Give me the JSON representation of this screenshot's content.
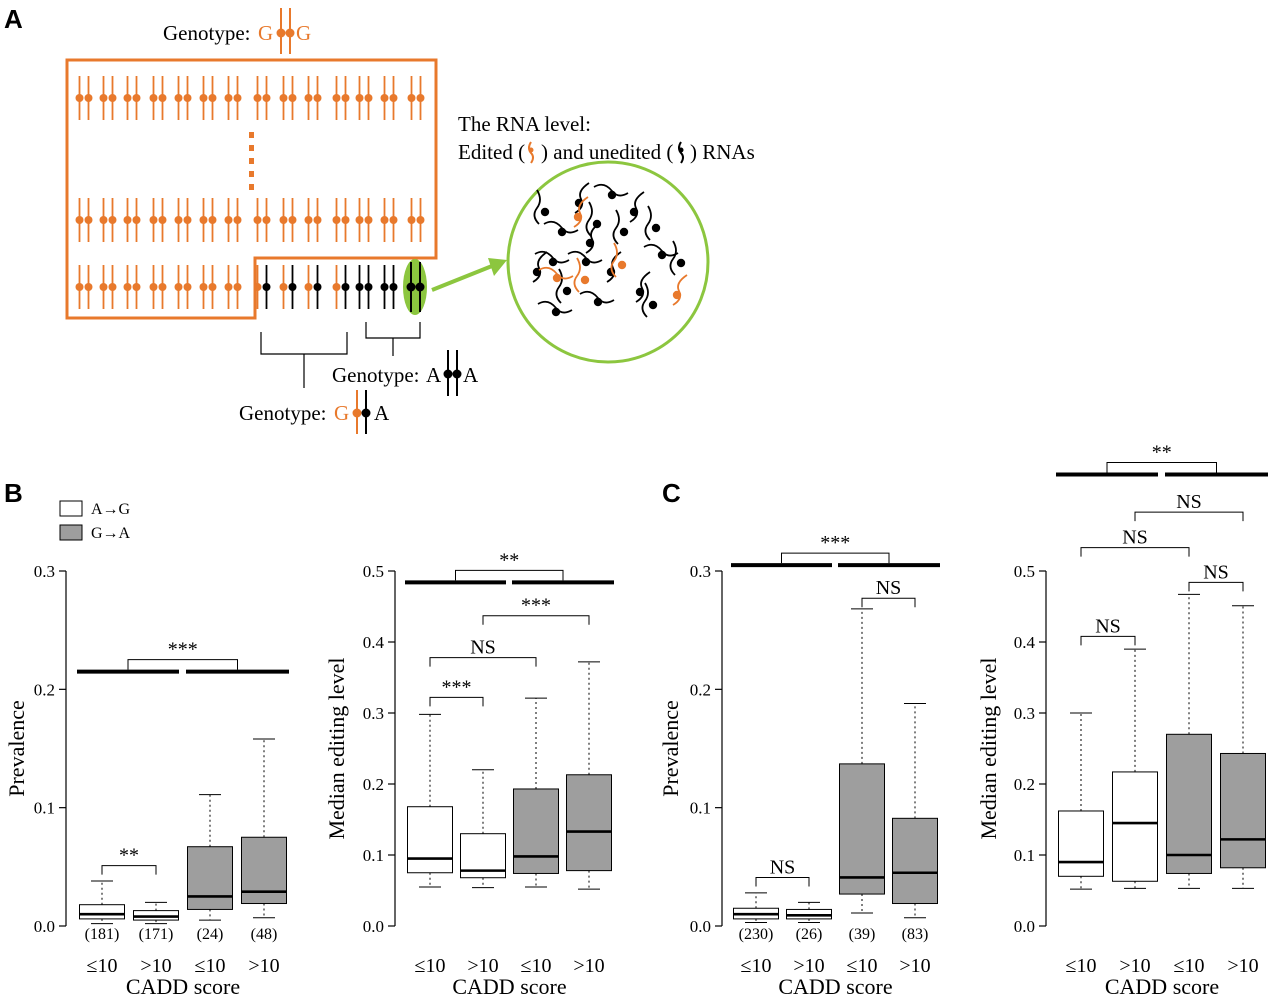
{
  "panels": {
    "a": {
      "letter": "A",
      "genotype_gg": {
        "label": "Genotype:",
        "allele_1": "G",
        "allele_2": "G"
      },
      "genotype_aa": {
        "label": "Genotype:",
        "allele_1": "A",
        "allele_2": "A"
      },
      "genotype_ga": {
        "label": "Genotype:",
        "allele_1": "G",
        "allele_2": "A"
      },
      "rna_title": "The RNA level:",
      "rna_legend": {
        "edited": "Edited (",
        "mid": ") and unedited (",
        "end": ") RNAs"
      }
    },
    "b": {
      "letter": "B"
    },
    "c": {
      "letter": "C"
    }
  },
  "legend": {
    "items": [
      {
        "label": "A→G",
        "color": "#ffffff"
      },
      {
        "label": "G→A",
        "color": "#9e9e9e"
      }
    ]
  },
  "colors": {
    "orange": "#e8792c",
    "green": "#8cc63f",
    "box_grey": "#9e9e9e",
    "black": "#000000"
  },
  "chart_data": [
    {
      "type": "box",
      "panel": "B",
      "ylabel": "Prevalence",
      "xlabel": "CADD score",
      "ylim": [
        0,
        0.3
      ],
      "yticks": [
        "0.0",
        "0.1",
        "0.2",
        "0.3"
      ],
      "categories": [
        "≤10",
        ">10",
        "≤10",
        ">10"
      ],
      "counts": [
        "(181)",
        "(171)",
        "(24)",
        "(48)"
      ],
      "boxes": [
        {
          "q1": 0.006,
          "median": 0.01,
          "q3": 0.018,
          "whisker_low": 0.002,
          "whisker_high": 0.038,
          "fill": "#ffffff"
        },
        {
          "q1": 0.005,
          "median": 0.008,
          "q3": 0.013,
          "whisker_low": 0.002,
          "whisker_high": 0.02,
          "fill": "#ffffff"
        },
        {
          "q1": 0.014,
          "median": 0.025,
          "q3": 0.067,
          "whisker_low": 0.005,
          "whisker_high": 0.111,
          "fill": "#9e9e9e"
        },
        {
          "q1": 0.019,
          "median": 0.029,
          "q3": 0.075,
          "whisker_low": 0.007,
          "whisker_high": 0.158,
          "fill": "#9e9e9e"
        }
      ],
      "comparisons": [
        {
          "from": 0,
          "to": 1,
          "y": 0.051,
          "label": "**"
        }
      ],
      "group_comparison": {
        "y": 0.215,
        "label": "***"
      }
    },
    {
      "type": "box",
      "panel": "B",
      "ylabel": "Median editing level",
      "xlabel": "CADD score",
      "ylim": [
        0,
        0.5
      ],
      "yticks": [
        "0.0",
        "0.1",
        "0.2",
        "0.3",
        "0.4",
        "0.5"
      ],
      "categories": [
        "≤10",
        ">10",
        "≤10",
        ">10"
      ],
      "boxes": [
        {
          "q1": 0.075,
          "median": 0.095,
          "q3": 0.168,
          "whisker_low": 0.055,
          "whisker_high": 0.298,
          "fill": "#ffffff"
        },
        {
          "q1": 0.068,
          "median": 0.078,
          "q3": 0.13,
          "whisker_low": 0.054,
          "whisker_high": 0.22,
          "fill": "#ffffff"
        },
        {
          "q1": 0.074,
          "median": 0.098,
          "q3": 0.193,
          "whisker_low": 0.055,
          "whisker_high": 0.321,
          "fill": "#9e9e9e"
        },
        {
          "q1": 0.078,
          "median": 0.133,
          "q3": 0.213,
          "whisker_low": 0.052,
          "whisker_high": 0.372,
          "fill": "#9e9e9e"
        }
      ],
      "comparisons": [
        {
          "from": 0,
          "to": 1,
          "y": 0.322,
          "label": "***"
        },
        {
          "from": 0,
          "to": 2,
          "y": 0.378,
          "label": "NS"
        },
        {
          "from": 1,
          "to": 3,
          "y": 0.437,
          "label": "***"
        }
      ],
      "group_comparison": {
        "y": 0.484,
        "label": "**"
      }
    },
    {
      "type": "box",
      "panel": "C",
      "ylabel": "Prevalence",
      "xlabel": "CADD score",
      "ylim": [
        0,
        0.3
      ],
      "yticks": [
        "0.0",
        "0.1",
        "0.2",
        "0.3"
      ],
      "categories": [
        "≤10",
        ">10",
        "≤10",
        ">10"
      ],
      "counts": [
        "(230)",
        "(26)",
        "(39)",
        "(83)"
      ],
      "boxes": [
        {
          "q1": 0.006,
          "median": 0.01,
          "q3": 0.015,
          "whisker_low": 0.003,
          "whisker_high": 0.028,
          "fill": "#ffffff"
        },
        {
          "q1": 0.006,
          "median": 0.009,
          "q3": 0.014,
          "whisker_low": 0.003,
          "whisker_high": 0.02,
          "fill": "#ffffff"
        },
        {
          "q1": 0.027,
          "median": 0.041,
          "q3": 0.137,
          "whisker_low": 0.011,
          "whisker_high": 0.268,
          "fill": "#9e9e9e"
        },
        {
          "q1": 0.019,
          "median": 0.045,
          "q3": 0.091,
          "whisker_low": 0.007,
          "whisker_high": 0.188,
          "fill": "#9e9e9e"
        }
      ],
      "comparisons": [
        {
          "from": 0,
          "to": 1,
          "y": 0.041,
          "label": "NS"
        },
        {
          "from": 2,
          "to": 3,
          "y": 0.277,
          "label": "NS"
        }
      ],
      "group_comparison": {
        "y": 0.305,
        "label": "***"
      }
    },
    {
      "type": "box",
      "panel": "C",
      "ylabel": "Median editing level",
      "xlabel": "CADD score",
      "ylim": [
        0,
        0.5
      ],
      "yticks": [
        "0.0",
        "0.1",
        "0.2",
        "0.3",
        "0.4",
        "0.5"
      ],
      "categories": [
        "≤10",
        ">10",
        "≤10",
        ">10"
      ],
      "boxes": [
        {
          "q1": 0.07,
          "median": 0.09,
          "q3": 0.162,
          "whisker_low": 0.052,
          "whisker_high": 0.3,
          "fill": "#ffffff"
        },
        {
          "q1": 0.063,
          "median": 0.145,
          "q3": 0.217,
          "whisker_low": 0.053,
          "whisker_high": 0.39,
          "fill": "#ffffff"
        },
        {
          "q1": 0.074,
          "median": 0.1,
          "q3": 0.27,
          "whisker_low": 0.053,
          "whisker_high": 0.467,
          "fill": "#9e9e9e"
        },
        {
          "q1": 0.082,
          "median": 0.122,
          "q3": 0.243,
          "whisker_low": 0.053,
          "whisker_high": 0.451,
          "fill": "#9e9e9e"
        }
      ],
      "comparisons": [
        {
          "from": 0,
          "to": 1,
          "y": 0.408,
          "label": "NS"
        },
        {
          "from": 2,
          "to": 3,
          "y": 0.484,
          "label": "NS"
        },
        {
          "from": 0,
          "to": 2,
          "y": 0.533,
          "label": "NS"
        },
        {
          "from": 1,
          "to": 3,
          "y": 0.583,
          "label": "NS"
        }
      ],
      "group_comparison": {
        "y": 0.636,
        "label": "**"
      }
    }
  ]
}
